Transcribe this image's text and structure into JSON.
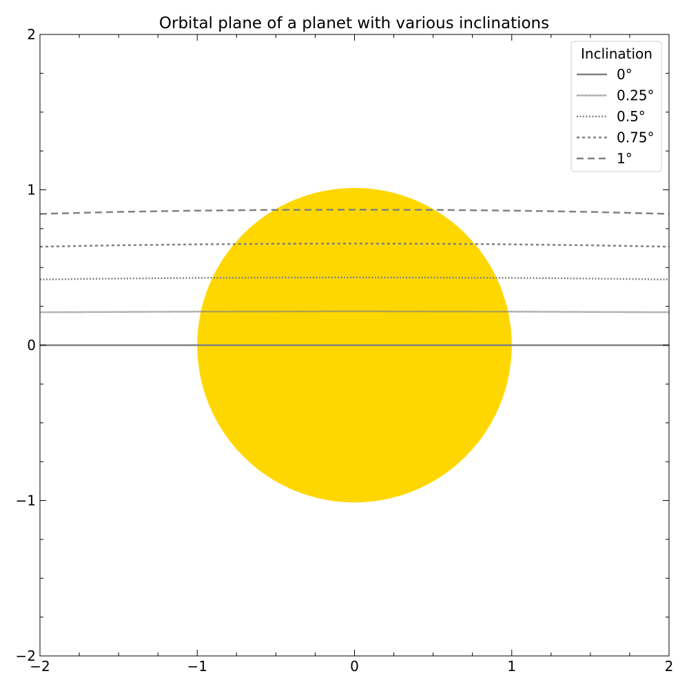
{
  "chart_data": {
    "type": "line",
    "title": "Orbital plane of a planet with various inclinations",
    "xlabel": "",
    "ylabel": "",
    "xlim": [
      -2,
      2
    ],
    "ylim": [
      -2,
      2
    ],
    "grid": false,
    "x_ticks": [
      -2,
      -1,
      0,
      1,
      2
    ],
    "y_ticks": [
      -2,
      -1,
      0,
      1,
      2
    ],
    "x_tick_labels": [
      "−2",
      "−1",
      "0",
      "1",
      "2"
    ],
    "y_tick_labels": [
      "−2",
      "−1",
      "0",
      "1",
      "2"
    ],
    "minor_tick_step": 0.25,
    "star": {
      "center": [
        0,
        0
      ],
      "radius": 1,
      "color": "#FFD700"
    },
    "legend": {
      "title": "Inclination",
      "placement": "top-right",
      "entries": [
        "0°",
        "0.25°",
        "0.5°",
        "0.75°",
        "1°"
      ]
    },
    "series": [
      {
        "name": "0°",
        "style": "solid",
        "color": "#808080",
        "x": [
          -2,
          -1.5,
          -1,
          -0.5,
          0,
          0.5,
          1,
          1.5,
          2
        ],
        "y": [
          0,
          0,
          0,
          0,
          0,
          0,
          0,
          0,
          0
        ]
      },
      {
        "name": "0.25°",
        "style": "densely-dotted",
        "color": "#808080",
        "x": [
          -2,
          -1.5,
          -1,
          -0.5,
          0,
          0.5,
          1,
          1.5,
          2
        ],
        "y": [
          0.212,
          0.214,
          0.216,
          0.217,
          0.218,
          0.217,
          0.216,
          0.214,
          0.212
        ]
      },
      {
        "name": "0.5°",
        "style": "dotted",
        "color": "#808080",
        "x": [
          -2,
          -1.5,
          -1,
          -0.5,
          0,
          0.5,
          1,
          1.5,
          2
        ],
        "y": [
          0.423,
          0.429,
          0.433,
          0.435,
          0.436,
          0.435,
          0.433,
          0.429,
          0.423
        ]
      },
      {
        "name": "0.75°",
        "style": "dashed",
        "color": "#808080",
        "x": [
          -2,
          -1.5,
          -1,
          -0.5,
          0,
          0.5,
          1,
          1.5,
          2
        ],
        "y": [
          0.634,
          0.643,
          0.649,
          0.653,
          0.654,
          0.653,
          0.649,
          0.643,
          0.634
        ]
      },
      {
        "name": "1°",
        "style": "long-dashed",
        "color": "#808080",
        "x": [
          -2,
          -1.5,
          -1,
          -0.5,
          0,
          0.5,
          1,
          1.5,
          2
        ],
        "y": [
          0.845,
          0.858,
          0.866,
          0.871,
          0.872,
          0.871,
          0.866,
          0.858,
          0.845
        ]
      }
    ]
  }
}
